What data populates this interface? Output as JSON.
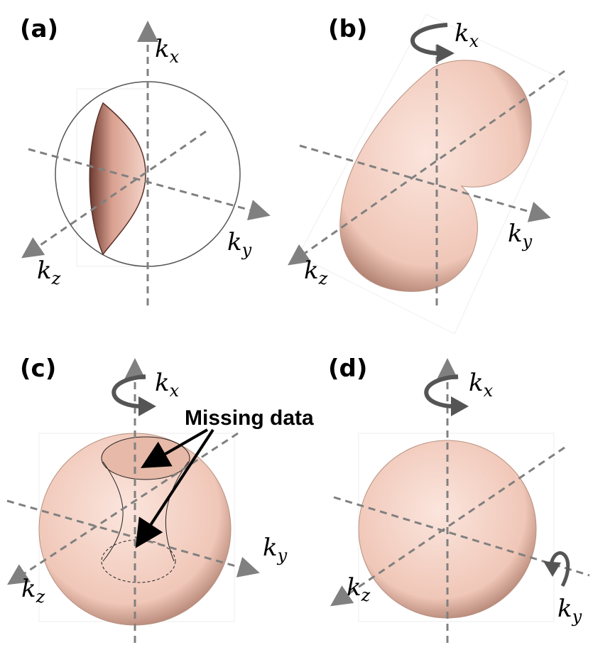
{
  "panels": [
    {
      "label": "(a)",
      "axes": [
        {
          "symbol": "k",
          "subscript": "x"
        },
        {
          "symbol": "k",
          "subscript": "y"
        },
        {
          "symbol": "k",
          "subscript": "z"
        }
      ]
    },
    {
      "label": "(b)",
      "axes": [
        {
          "symbol": "k",
          "subscript": "x"
        },
        {
          "symbol": "k",
          "subscript": "y"
        },
        {
          "symbol": "k",
          "subscript": "z"
        }
      ]
    },
    {
      "label": "(c)",
      "axes": [
        {
          "symbol": "k",
          "subscript": "x"
        },
        {
          "symbol": "k",
          "subscript": "y"
        },
        {
          "symbol": "k",
          "subscript": "z"
        }
      ],
      "annotation": "Missing data"
    },
    {
      "label": "(d)",
      "axes": [
        {
          "symbol": "k",
          "subscript": "x"
        },
        {
          "symbol": "k",
          "subscript": "y"
        },
        {
          "symbol": "k",
          "subscript": "z"
        }
      ]
    }
  ]
}
